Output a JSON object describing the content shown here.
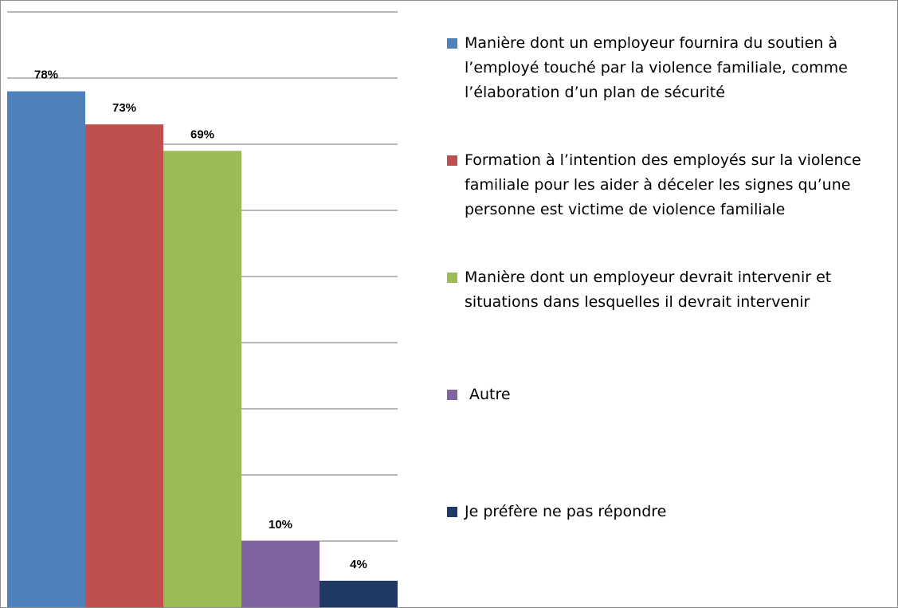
{
  "chart_data": {
    "type": "bar",
    "title": "",
    "xlabel": "",
    "ylabel": "",
    "ylim": [
      0,
      90
    ],
    "grid": true,
    "legend_position": "right",
    "categories": [
      "Manière dont un employeur fournira du soutien à l’employé touché par la violence familiale, comme l’élaboration d’un plan de sécurité",
      "Formation à l’intention des employés sur la violence familiale pour les aider à déceler les signes qu’une personne est victime de violence familiale",
      "Manière dont un employeur devrait intervenir et situations dans lesquelles il devrait intervenir",
      "Autre",
      "Je préfère ne pas répondre"
    ],
    "values": [
      78,
      73,
      69,
      10,
      4
    ],
    "data_labels": [
      "78%",
      "73%",
      "69%",
      "10%",
      "4%"
    ],
    "colors": [
      "#4f81bd",
      "#c0504d",
      "#9bbb59",
      "#8064a2",
      "#1f3864"
    ]
  }
}
